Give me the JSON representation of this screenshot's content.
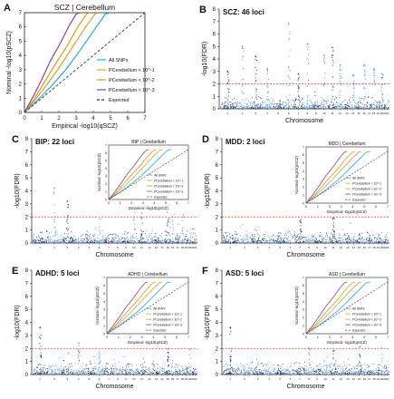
{
  "chart_data": [
    {
      "type": "line",
      "panel_letter": "A",
      "title": "SCZ | Cerebellum",
      "xlabel": "Empirical -log10(qSCZ)",
      "ylabel": "Nominal -log10(pSCZ)",
      "xlim": [
        0,
        7
      ],
      "ylim": [
        0,
        7
      ],
      "xticks": [
        "0",
        "1",
        "2",
        "3",
        "4",
        "5",
        "6",
        "7"
      ],
      "yticks": [
        "0",
        "1",
        "2",
        "3",
        "4",
        "5",
        "6",
        "7"
      ],
      "legend_position": "bottom-right",
      "series": [
        {
          "name": "All SNPs",
          "color": "#29a9d6",
          "x": [
            0,
            0.8,
            1.6,
            2.4,
            3.2,
            4.0,
            4.7,
            5.0
          ],
          "y": [
            0,
            0.9,
            1.9,
            3.0,
            4.3,
            5.7,
            6.9,
            7.0
          ]
        },
        {
          "name": "PCerebellum < 10^-1",
          "color": "#e89a2c",
          "x": [
            0,
            0.7,
            1.4,
            2.1,
            2.8,
            3.5,
            4.1,
            4.3
          ],
          "y": [
            0,
            1.0,
            2.1,
            3.3,
            4.6,
            5.9,
            6.9,
            7.0
          ]
        },
        {
          "name": "PCerebellum < 10^-2",
          "color": "#c9a227",
          "x": [
            0,
            0.6,
            1.2,
            1.8,
            2.5,
            3.1,
            3.6,
            3.8
          ],
          "y": [
            0,
            1.0,
            2.2,
            3.4,
            4.7,
            6.0,
            6.9,
            7.0
          ]
        },
        {
          "name": "PCerebellum < 10^-3",
          "color": "#8a3fb0",
          "x": [
            0,
            0.5,
            1.0,
            1.5,
            2.1,
            2.6,
            3.0,
            3.2
          ],
          "y": [
            0,
            1.1,
            2.3,
            3.6,
            4.9,
            6.1,
            6.9,
            7.0
          ]
        },
        {
          "name": "Expected",
          "color": "#333333",
          "dashed": true,
          "x": [
            0,
            7
          ],
          "y": [
            0,
            7
          ]
        }
      ]
    },
    {
      "type": "scatter",
      "panel_letter": "B",
      "title": "SCZ: 46 loci",
      "xlabel": "Chromosome",
      "ylabel": "-log10(FDR)",
      "ylim": [
        0,
        8
      ],
      "yticks": [
        "0",
        "1",
        "2",
        "3",
        "4",
        "5",
        "6",
        "7",
        "8"
      ],
      "threshold": 2,
      "loci": 46
    },
    {
      "type": "scatter",
      "panel_letter": "C",
      "title": "BIP: 22 loci",
      "inset_title": "BIP | Cerebellum",
      "xlabel": "Chromosome",
      "ylabel": "-log10(FDR)",
      "ylim": [
        0,
        8
      ],
      "yticks": [
        "0",
        "1",
        "2",
        "3",
        "4",
        "5",
        "6",
        "7",
        "8"
      ],
      "threshold": 2,
      "loci": 22
    },
    {
      "type": "scatter",
      "panel_letter": "D",
      "title": "MDD: 2 loci",
      "inset_title": "MDD | Cerebellum",
      "xlabel": "Chromosome",
      "ylabel": "-log10(FDR)",
      "ylim": [
        0,
        8
      ],
      "yticks": [
        "0",
        "1",
        "2",
        "3",
        "4",
        "5",
        "6",
        "7",
        "8"
      ],
      "threshold": 2,
      "loci": 2
    },
    {
      "type": "scatter",
      "panel_letter": "E",
      "title": "ADHD: 5 loci",
      "inset_title": "ADHD | Cerebellum",
      "xlabel": "Chromosome",
      "ylabel": "-log10(FDR)",
      "ylim": [
        0,
        8
      ],
      "yticks": [
        "0",
        "1",
        "2",
        "3",
        "4",
        "5",
        "6",
        "7",
        "8"
      ],
      "threshold": 2,
      "loci": 5
    },
    {
      "type": "scatter",
      "panel_letter": "F",
      "title": "ASD: 5 loci",
      "inset_title": "ASD | Cerebellum",
      "xlabel": "Chromosome",
      "ylabel": "-log10(FDR)",
      "ylim": [
        0,
        8
      ],
      "yticks": [
        "0",
        "1",
        "2",
        "3",
        "4",
        "5",
        "6",
        "7",
        "8"
      ],
      "threshold": 2,
      "loci": 5
    }
  ]
}
